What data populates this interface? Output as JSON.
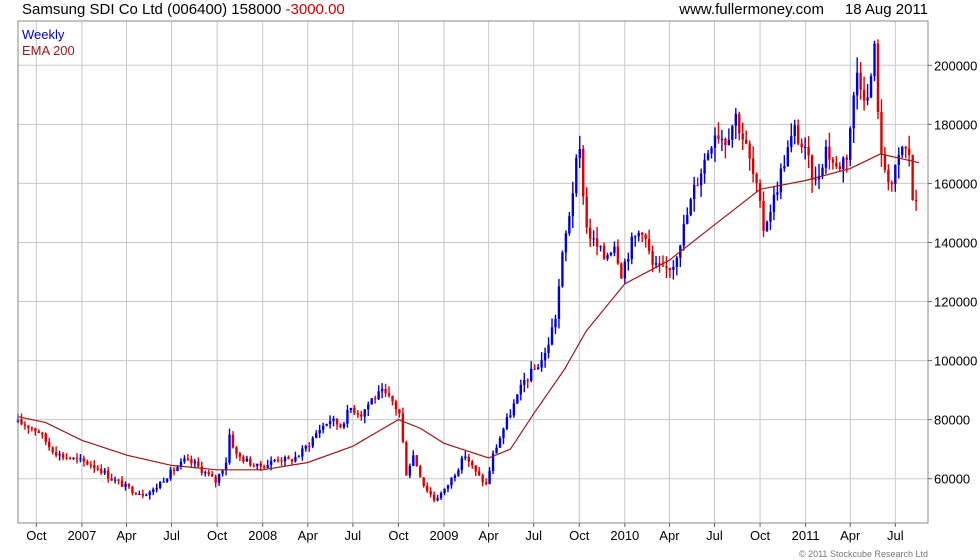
{
  "header": {
    "company": "Samsung SDI Co Ltd",
    "ticker": "(006400)",
    "price": "158000",
    "change": "-3000.00",
    "website": "www.fullermoney.com",
    "date": "18 Aug 2011"
  },
  "legend": {
    "period": "Weekly",
    "ema": "EMA 200"
  },
  "copyright": "© 2011 Stockcube Research Ltd",
  "colors": {
    "up": "#0000dd",
    "down": "#dd0000",
    "ema": "#a01818",
    "grid": "#c8c8c8"
  },
  "chart_data": {
    "type": "line",
    "subtype": "weekly-bars",
    "grid": true,
    "ylim": [
      45000,
      215000
    ],
    "yticks": [
      60000,
      80000,
      100000,
      120000,
      140000,
      160000,
      180000,
      200000
    ],
    "xticks": [
      {
        "label": "Oct",
        "date": "2006-10-01"
      },
      {
        "label": "2007",
        "date": "2007-01-01"
      },
      {
        "label": "Apr",
        "date": "2007-04-01"
      },
      {
        "label": "Jul",
        "date": "2007-07-01"
      },
      {
        "label": "Oct",
        "date": "2007-10-01"
      },
      {
        "label": "2008",
        "date": "2008-01-01"
      },
      {
        "label": "Apr",
        "date": "2008-04-01"
      },
      {
        "label": "Jul",
        "date": "2008-07-01"
      },
      {
        "label": "Oct",
        "date": "2008-10-01"
      },
      {
        "label": "2009",
        "date": "2009-01-01"
      },
      {
        "label": "Apr",
        "date": "2009-04-01"
      },
      {
        "label": "Jul",
        "date": "2009-07-01"
      },
      {
        "label": "Oct",
        "date": "2009-10-01"
      },
      {
        "label": "2010",
        "date": "2010-01-01"
      },
      {
        "label": "Apr",
        "date": "2010-04-01"
      },
      {
        "label": "Jul",
        "date": "2010-07-01"
      },
      {
        "label": "Oct",
        "date": "2010-10-01"
      },
      {
        "label": "2011",
        "date": "2011-01-01"
      },
      {
        "label": "Apr",
        "date": "2011-04-01"
      },
      {
        "label": "Jul",
        "date": "2011-07-01"
      }
    ],
    "x_range": [
      "2006-08-25",
      "2011-09-05"
    ],
    "price_series": {
      "name": "Weekly",
      "points": [
        [
          "2006-08-25",
          79000
        ],
        [
          "2006-09-15",
          78000
        ],
        [
          "2006-10-06",
          76000
        ],
        [
          "2006-10-27",
          71000
        ],
        [
          "2006-11-17",
          68000
        ],
        [
          "2006-12-08",
          67000
        ],
        [
          "2006-12-29",
          66000
        ],
        [
          "2007-01-19",
          65000
        ],
        [
          "2007-02-09",
          63000
        ],
        [
          "2007-03-02",
          60000
        ],
        [
          "2007-03-23",
          58000
        ],
        [
          "2007-04-13",
          56000
        ],
        [
          "2007-05-04",
          55000
        ],
        [
          "2007-05-25",
          56000
        ],
        [
          "2007-06-15",
          60000
        ],
        [
          "2007-07-06",
          63000
        ],
        [
          "2007-07-27",
          66000
        ],
        [
          "2007-08-17",
          65000
        ],
        [
          "2007-09-07",
          62000
        ],
        [
          "2007-09-28",
          59000
        ],
        [
          "2007-10-19",
          66000
        ],
        [
          "2007-10-26",
          75000
        ],
        [
          "2007-11-09",
          68000
        ],
        [
          "2007-11-30",
          66000
        ],
        [
          "2007-12-21",
          64000
        ],
        [
          "2008-01-11",
          65000
        ],
        [
          "2008-02-01",
          67000
        ],
        [
          "2008-02-22",
          66000
        ],
        [
          "2008-03-14",
          68000
        ],
        [
          "2008-04-04",
          72000
        ],
        [
          "2008-04-25",
          77000
        ],
        [
          "2008-05-16",
          80000
        ],
        [
          "2008-06-06",
          78000
        ],
        [
          "2008-06-27",
          84000
        ],
        [
          "2008-07-18",
          82000
        ],
        [
          "2008-08-08",
          87000
        ],
        [
          "2008-08-29",
          89000
        ],
        [
          "2008-09-19",
          86000
        ],
        [
          "2008-10-03",
          82000
        ],
        [
          "2008-10-17",
          62000
        ],
        [
          "2008-10-31",
          68000
        ],
        [
          "2008-11-21",
          58000
        ],
        [
          "2008-12-12",
          53000
        ],
        [
          "2009-01-02",
          56000
        ],
        [
          "2009-01-23",
          62000
        ],
        [
          "2009-02-13",
          68000
        ],
        [
          "2009-03-06",
          62000
        ],
        [
          "2009-03-27",
          58000
        ],
        [
          "2009-04-10",
          68000
        ],
        [
          "2009-05-01",
          77000
        ],
        [
          "2009-05-22",
          85000
        ],
        [
          "2009-06-12",
          93000
        ],
        [
          "2009-07-03",
          97000
        ],
        [
          "2009-07-24",
          102000
        ],
        [
          "2009-08-14",
          115000
        ],
        [
          "2009-08-28",
          135000
        ],
        [
          "2009-09-11",
          150000
        ],
        [
          "2009-09-25",
          166000
        ],
        [
          "2009-10-02",
          170000
        ],
        [
          "2009-10-16",
          145000
        ],
        [
          "2009-10-30",
          140000
        ],
        [
          "2009-11-20",
          135000
        ],
        [
          "2009-12-11",
          140000
        ],
        [
          "2009-12-25",
          130000
        ],
        [
          "2010-01-15",
          140000
        ],
        [
          "2010-02-05",
          145000
        ],
        [
          "2010-02-26",
          132000
        ],
        [
          "2010-03-19",
          130000
        ],
        [
          "2010-04-09",
          133000
        ],
        [
          "2010-04-30",
          145000
        ],
        [
          "2010-05-21",
          158000
        ],
        [
          "2010-06-11",
          168000
        ],
        [
          "2010-07-02",
          178000
        ],
        [
          "2010-07-23",
          175000
        ],
        [
          "2010-08-13",
          183000
        ],
        [
          "2010-09-03",
          172000
        ],
        [
          "2010-09-24",
          158000
        ],
        [
          "2010-10-08",
          145000
        ],
        [
          "2010-10-29",
          155000
        ],
        [
          "2010-11-19",
          168000
        ],
        [
          "2010-12-10",
          178000
        ],
        [
          "2010-12-31",
          170000
        ],
        [
          "2011-01-21",
          160000
        ],
        [
          "2011-02-11",
          172000
        ],
        [
          "2011-03-04",
          165000
        ],
        [
          "2011-03-25",
          170000
        ],
        [
          "2011-04-15",
          198000
        ],
        [
          "2011-05-06",
          188000
        ],
        [
          "2011-05-20",
          205000
        ],
        [
          "2011-06-03",
          168000
        ],
        [
          "2011-06-24",
          160000
        ],
        [
          "2011-07-15",
          172000
        ],
        [
          "2011-07-29",
          170000
        ],
        [
          "2011-08-05",
          155000
        ],
        [
          "2011-08-12",
          152000
        ],
        [
          "2011-08-18",
          158000
        ]
      ]
    },
    "ema_series": {
      "name": "EMA 200",
      "points": [
        [
          "2006-08-25",
          81000
        ],
        [
          "2006-10-20",
          79000
        ],
        [
          "2007-01-01",
          73000
        ],
        [
          "2007-04-01",
          68000
        ],
        [
          "2007-07-01",
          64500
        ],
        [
          "2007-10-01",
          63000
        ],
        [
          "2008-01-01",
          63000
        ],
        [
          "2008-04-01",
          65500
        ],
        [
          "2008-07-01",
          71000
        ],
        [
          "2008-10-01",
          80000
        ],
        [
          "2008-11-15",
          77000
        ],
        [
          "2009-01-01",
          72000
        ],
        [
          "2009-04-01",
          67000
        ],
        [
          "2009-05-15",
          70000
        ],
        [
          "2009-07-01",
          82000
        ],
        [
          "2009-09-01",
          97000
        ],
        [
          "2009-10-15",
          110000
        ],
        [
          "2010-01-01",
          126000
        ],
        [
          "2010-04-01",
          134000
        ],
        [
          "2010-07-01",
          146000
        ],
        [
          "2010-10-01",
          158000
        ],
        [
          "2011-01-01",
          161000
        ],
        [
          "2011-04-01",
          165000
        ],
        [
          "2011-06-01",
          170000
        ],
        [
          "2011-08-18",
          167000
        ]
      ]
    }
  }
}
